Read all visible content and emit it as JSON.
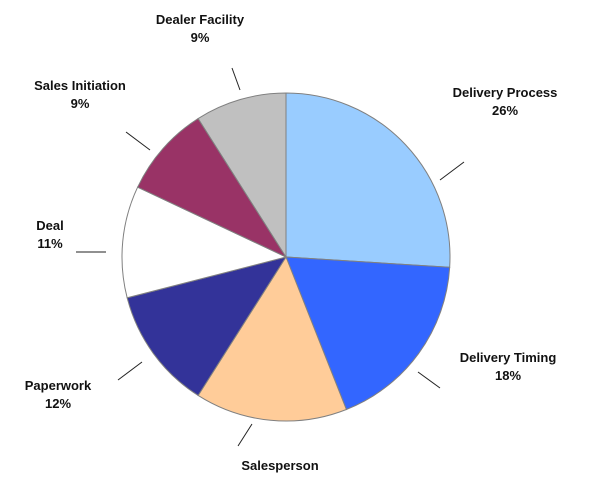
{
  "chart_data": {
    "type": "pie",
    "title": "",
    "start_angle": "12 o'clock, clockwise",
    "slices": [
      {
        "label": "Delivery Process",
        "value": 26,
        "pct_label": "26%",
        "color": "#99CCFF"
      },
      {
        "label": "Delivery Timing",
        "value": 18,
        "pct_label": "18%",
        "color": "#3366FF"
      },
      {
        "label": "Salesperson",
        "value": 15,
        "pct_label": null,
        "color": "#FFCC99"
      },
      {
        "label": "Paperwork",
        "value": 12,
        "pct_label": "12%",
        "color": "#333399"
      },
      {
        "label": "Deal",
        "value": 11,
        "pct_label": "11%",
        "color": "#FFFFFF"
      },
      {
        "label": "Sales Initiation",
        "value": 9,
        "pct_label": "9%",
        "color": "#993366"
      },
      {
        "label": "Dealer Facility",
        "value": 9,
        "pct_label": "9%",
        "color": "#C0C0C0"
      }
    ],
    "legend": "none (leader-line labels)"
  }
}
